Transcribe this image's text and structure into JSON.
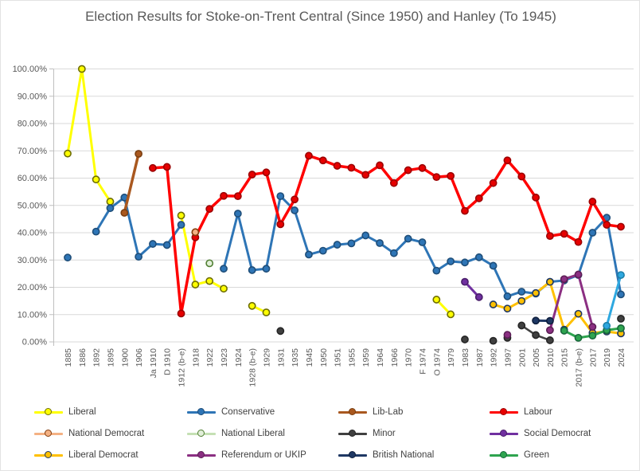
{
  "header": {
    "title": "Election Results for Stoke-on-Trent Central (Since 1950) and Hanley (To 1945)"
  },
  "y_axis": {
    "tick_labels": [
      "100.00%",
      "90.00%",
      "80.00%",
      "70.00%",
      "60.00%",
      "50.00%",
      "40.00%",
      "30.00%",
      "20.00%",
      "10.00%",
      "0.00%"
    ],
    "min": 0,
    "max": 100,
    "step": 10
  },
  "legend": [
    {
      "label": "Liberal",
      "line_color": "#ffff00",
      "marker_fill": "#ffff00",
      "marker_stroke": "#6d6d00"
    },
    {
      "label": "Conservative",
      "line_color": "#2e75b6",
      "marker_fill": "#2e75b6",
      "marker_stroke": "#1f4e79"
    },
    {
      "label": "Lib-Lab",
      "line_color": "#a9581f",
      "marker_fill": "#a9581f",
      "marker_stroke": "#7b3f11"
    },
    {
      "label": "Labour",
      "line_color": "#ff0000",
      "marker_fill": "#e60000",
      "marker_stroke": "#9c0000"
    },
    {
      "label": "National Democrat",
      "line_color": "#f4b183",
      "marker_fill": "#f4b183",
      "marker_stroke": "#843c0c"
    },
    {
      "label": "National Liberal",
      "line_color": "#c5e0b4",
      "marker_fill": "#e2efda",
      "marker_stroke": "#538135"
    },
    {
      "label": "Minor",
      "line_color": "#404040",
      "marker_fill": "#404040",
      "marker_stroke": "#262626"
    },
    {
      "label": "Social Democrat",
      "line_color": "#7030a0",
      "marker_fill": "#7030a0",
      "marker_stroke": "#4a1e6b"
    },
    {
      "label": "Liberal Democrat",
      "line_color": "#ffc000",
      "marker_fill": "#ffc000",
      "marker_stroke": "#1f3864"
    },
    {
      "label": "Referendum or UKIP",
      "line_color": "#8b2f82",
      "marker_fill": "#8b2f82",
      "marker_stroke": "#5c1f56"
    },
    {
      "label": "British National",
      "line_color": "#1f3864",
      "marker_fill": "#1f3864",
      "marker_stroke": "#0f1f3d"
    },
    {
      "label": "Green",
      "line_color": "#2ea44f",
      "marker_fill": "#2ea44f",
      "marker_stroke": "#17683b"
    }
  ],
  "chart_data": {
    "type": "line",
    "title": "Election Results for Stoke-on-Trent Central (Since 1950) and Hanley (To 1945)",
    "xlabel": "",
    "ylabel": "",
    "ylim": [
      0,
      100
    ],
    "grid": "horizontal",
    "legend_position": "bottom",
    "categories": [
      "1885",
      "1886",
      "1892",
      "1895",
      "1900",
      "1906",
      "Ja 1910",
      "D 1910",
      "1912 (b-e)",
      "1918",
      "1922",
      "1923",
      "1924",
      "1928 (b-e)",
      "1929",
      "1931",
      "1935",
      "1945",
      "1950",
      "1951",
      "1955",
      "1959",
      "1964",
      "1966",
      "1970",
      "F 1974",
      "O 1974",
      "1979",
      "1983",
      "1987",
      "1992",
      "1997",
      "2001",
      "2005",
      "2010",
      "2015",
      "2017 (b-e)",
      "2017",
      "2019",
      "2024"
    ],
    "series": [
      {
        "name": "Liberal",
        "color": "#ffff00",
        "marker_fill": "#ffff00",
        "marker_stroke": "#6d6d00",
        "width": 3,
        "segments": [
          [
            [
              0,
              69
            ],
            [
              1,
              100
            ],
            [
              2,
              59.5
            ],
            [
              3,
              51.4
            ]
          ],
          [
            [
              8,
              46.3
            ],
            [
              9,
              21
            ],
            [
              10,
              22.3
            ],
            [
              11,
              19.5
            ]
          ],
          [
            [
              13,
              13.2
            ],
            [
              14,
              10.8
            ]
          ],
          [
            [
              26,
              15.5
            ],
            [
              27,
              10.1
            ]
          ]
        ]
      },
      {
        "name": "Conservative",
        "color": "#2e75b6",
        "marker_fill": "#2e75b6",
        "marker_stroke": "#1f4e79",
        "width": 3,
        "segments": [
          [
            [
              0,
              30.9
            ]
          ],
          [
            [
              2,
              40.4
            ],
            [
              3,
              49
            ],
            [
              4,
              52.9
            ],
            [
              5,
              31.2
            ],
            [
              6,
              35.9
            ],
            [
              7,
              35.5
            ],
            [
              8,
              42.9
            ]
          ],
          [
            [
              11,
              26.8
            ],
            [
              12,
              47
            ],
            [
              13,
              26.3
            ],
            [
              14,
              26.8
            ],
            [
              15,
              53.4
            ],
            [
              16,
              48.2
            ],
            [
              17,
              32
            ],
            [
              18,
              33.4
            ],
            [
              19,
              35.6
            ],
            [
              20,
              36.1
            ],
            [
              21,
              39
            ],
            [
              22,
              36.2
            ],
            [
              23,
              32.5
            ],
            [
              24,
              37.8
            ],
            [
              25,
              36.5
            ],
            [
              26,
              26.1
            ],
            [
              27,
              29.5
            ],
            [
              28,
              29.1
            ],
            [
              29,
              31
            ],
            [
              30,
              27.9
            ],
            [
              31,
              16.7
            ],
            [
              32,
              18.4
            ],
            [
              33,
              17.7
            ],
            [
              34,
              22
            ],
            [
              35,
              22.5
            ],
            [
              36,
              24.5
            ],
            [
              37,
              40
            ],
            [
              38,
              45.5
            ],
            [
              39,
              17.4
            ]
          ]
        ]
      },
      {
        "name": "Lib-Lab",
        "color": "#a9581f",
        "marker_fill": "#a9581f",
        "marker_stroke": "#7b3f11",
        "width": 3.5,
        "segments": [
          [
            [
              4,
              47.3
            ],
            [
              5,
              68.9
            ]
          ]
        ]
      },
      {
        "name": "Labour",
        "color": "#ff0000",
        "marker_fill": "#e60000",
        "marker_stroke": "#9c0000",
        "width": 3.5,
        "segments": [
          [
            [
              6,
              63.7
            ],
            [
              7,
              64.1
            ],
            [
              8,
              10.4
            ],
            [
              9,
              38.3
            ],
            [
              10,
              48.7
            ],
            [
              11,
              53.5
            ],
            [
              12,
              53.4
            ],
            [
              13,
              61.3
            ],
            [
              14,
              62.1
            ],
            [
              15,
              43.1
            ],
            [
              16,
              52.2
            ],
            [
              17,
              68.2
            ],
            [
              18,
              66.5
            ],
            [
              19,
              64.5
            ],
            [
              20,
              63.8
            ],
            [
              21,
              61.2
            ],
            [
              22,
              64.7
            ],
            [
              23,
              58.2
            ],
            [
              24,
              62.9
            ],
            [
              25,
              63.7
            ],
            [
              26,
              60.4
            ],
            [
              27,
              60.8
            ],
            [
              28,
              48
            ],
            [
              29,
              52.6
            ],
            [
              30,
              58.2
            ],
            [
              31,
              66.5
            ],
            [
              32,
              60.6
            ],
            [
              33,
              52.9
            ],
            [
              34,
              38.8
            ],
            [
              35,
              39.6
            ],
            [
              36,
              36.6
            ],
            [
              37,
              51.4
            ],
            [
              38,
              42.9
            ],
            [
              39,
              42.2
            ]
          ]
        ]
      },
      {
        "name": "National Democrat",
        "color": "#f4b183",
        "marker_fill": "#f4b183",
        "marker_stroke": "#843c0c",
        "width": 2.5,
        "segments": [
          [
            [
              9,
              40.2
            ]
          ]
        ]
      },
      {
        "name": "National Liberal",
        "color": "#c5e0b4",
        "marker_fill": "#e2efda",
        "marker_stroke": "#538135",
        "width": 2.5,
        "segments": [
          [
            [
              10,
              28.8
            ]
          ]
        ]
      },
      {
        "name": "Minor",
        "color": "#404040",
        "marker_fill": "#404040",
        "marker_stroke": "#262626",
        "width": 2.5,
        "segments": [
          [
            [
              15,
              4
            ]
          ],
          [
            [
              28,
              0.9
            ]
          ],
          [
            [
              30,
              0.4
            ]
          ],
          [
            [
              31,
              1.5
            ]
          ],
          [
            [
              32,
              6
            ],
            [
              33,
              2.5
            ],
            [
              34,
              0.6
            ]
          ],
          [
            [
              39,
              8.5
            ]
          ]
        ]
      },
      {
        "name": "Social Democrat",
        "color": "#7030a0",
        "marker_fill": "#7030a0",
        "marker_stroke": "#4a1e6b",
        "width": 3,
        "segments": [
          [
            [
              28,
              22
            ],
            [
              29,
              16.4
            ]
          ]
        ]
      },
      {
        "name": "Liberal Democrat",
        "color": "#ffc000",
        "marker_fill": "#ffc000",
        "marker_stroke": "#1f3864",
        "width": 3,
        "segments": [
          [
            [
              30,
              13.7
            ],
            [
              31,
              12.2
            ],
            [
              32,
              15
            ],
            [
              33,
              17.9
            ],
            [
              34,
              22
            ],
            [
              35,
              4.5
            ],
            [
              36,
              10.3
            ],
            [
              37,
              3.3
            ],
            [
              38,
              3.8
            ],
            [
              39,
              3.1
            ]
          ]
        ]
      },
      {
        "name": "Referendum or UKIP",
        "color": "#8b2f82",
        "marker_fill": "#8b2f82",
        "marker_stroke": "#5c1f56",
        "width": 3,
        "segments": [
          [
            [
              31,
              2.6
            ]
          ],
          [
            [
              34,
              4.3
            ],
            [
              35,
              23
            ],
            [
              36,
              24.7
            ],
            [
              37,
              5.5
            ]
          ]
        ]
      },
      {
        "name": "British National",
        "color": "#1f3864",
        "marker_fill": "#1f3864",
        "marker_stroke": "#0f1f3d",
        "width": 3,
        "segments": [
          [
            [
              33,
              7.8
            ],
            [
              34,
              7.7
            ]
          ]
        ]
      },
      {
        "name": "Green",
        "color": "#2ea44f",
        "marker_fill": "#2ea44f",
        "marker_stroke": "#17683b",
        "width": 3,
        "segments": [
          [
            [
              35,
              4.1
            ],
            [
              36,
              1.5
            ],
            [
              37,
              2.3
            ],
            [
              38,
              4.3
            ],
            [
              39,
              5
            ]
          ]
        ]
      },
      {
        "name": "unlabeled-light-blue",
        "color": "#2ea8e0",
        "marker_fill": "#2ea8e0",
        "marker_stroke": "#1e7fa8",
        "width": 3,
        "segments": [
          [
            [
              38,
              5.9
            ],
            [
              39,
              24.5
            ]
          ]
        ]
      }
    ]
  }
}
